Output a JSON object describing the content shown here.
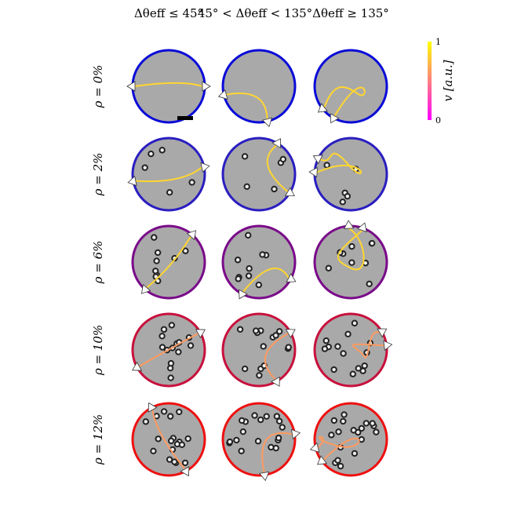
{
  "columns": [
    "Δθeff ≤ 45°",
    "45° < Δθeff < 135°",
    "Δθeff ≥ 135°"
  ],
  "rows": [
    {
      "label": "ρ = 0%",
      "ring_color": "#0a0ad8",
      "particles": 0
    },
    {
      "label": "ρ = 2%",
      "ring_color": "#2a1ec0",
      "particles": 5
    },
    {
      "label": "ρ = 6%",
      "ring_color": "#7a0a8a",
      "particles": 9
    },
    {
      "label": "ρ = 10%",
      "ring_color": "#c8103c",
      "particles": 14
    },
    {
      "label": "ρ = 12%",
      "ring_color": "#ee1010",
      "particles": 18
    }
  ],
  "colorbar": {
    "top_label": "1",
    "bottom_label": "0",
    "label": "v [a.u.]"
  }
}
